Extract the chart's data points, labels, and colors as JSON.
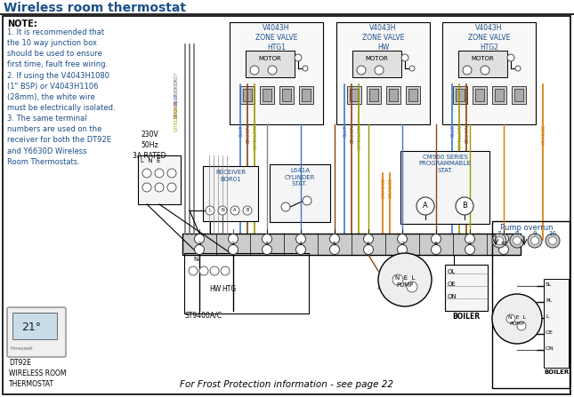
{
  "title": "Wireless room thermostat",
  "title_color": "#1a4f8a",
  "bg_color": "#ffffff",
  "note_color": "#1a4f8a",
  "footer_text": "For Frost Protection information - see page 22",
  "zone_labels": [
    "V4043H\nZONE VALVE\nHTG1",
    "V4043H\nZONE VALVE\nHW",
    "V4043H\nZONE VALVE\nHTG2"
  ],
  "pump_overrun_label": "Pump overrun",
  "wire_colors": {
    "grey": "#888888",
    "blue": "#4477cc",
    "brown": "#8B4513",
    "gyellow": "#999900",
    "orange": "#dd7700",
    "black": "#111111"
  },
  "note_lines": [
    "NOTE:",
    "1. It is recommended that",
    "the 10 way junction box",
    "should be used to ensure",
    "first time, fault free wiring.",
    "2. If using the V4043H1080",
    "(1\" BSP) or V4043H1106",
    "(28mm), the white wire",
    "must be electrically isolated.",
    "3. The same terminal",
    "numbers are used on the",
    "receiver for both the DT92E",
    "and Y6630D Wireless",
    "Room Thermostats."
  ]
}
